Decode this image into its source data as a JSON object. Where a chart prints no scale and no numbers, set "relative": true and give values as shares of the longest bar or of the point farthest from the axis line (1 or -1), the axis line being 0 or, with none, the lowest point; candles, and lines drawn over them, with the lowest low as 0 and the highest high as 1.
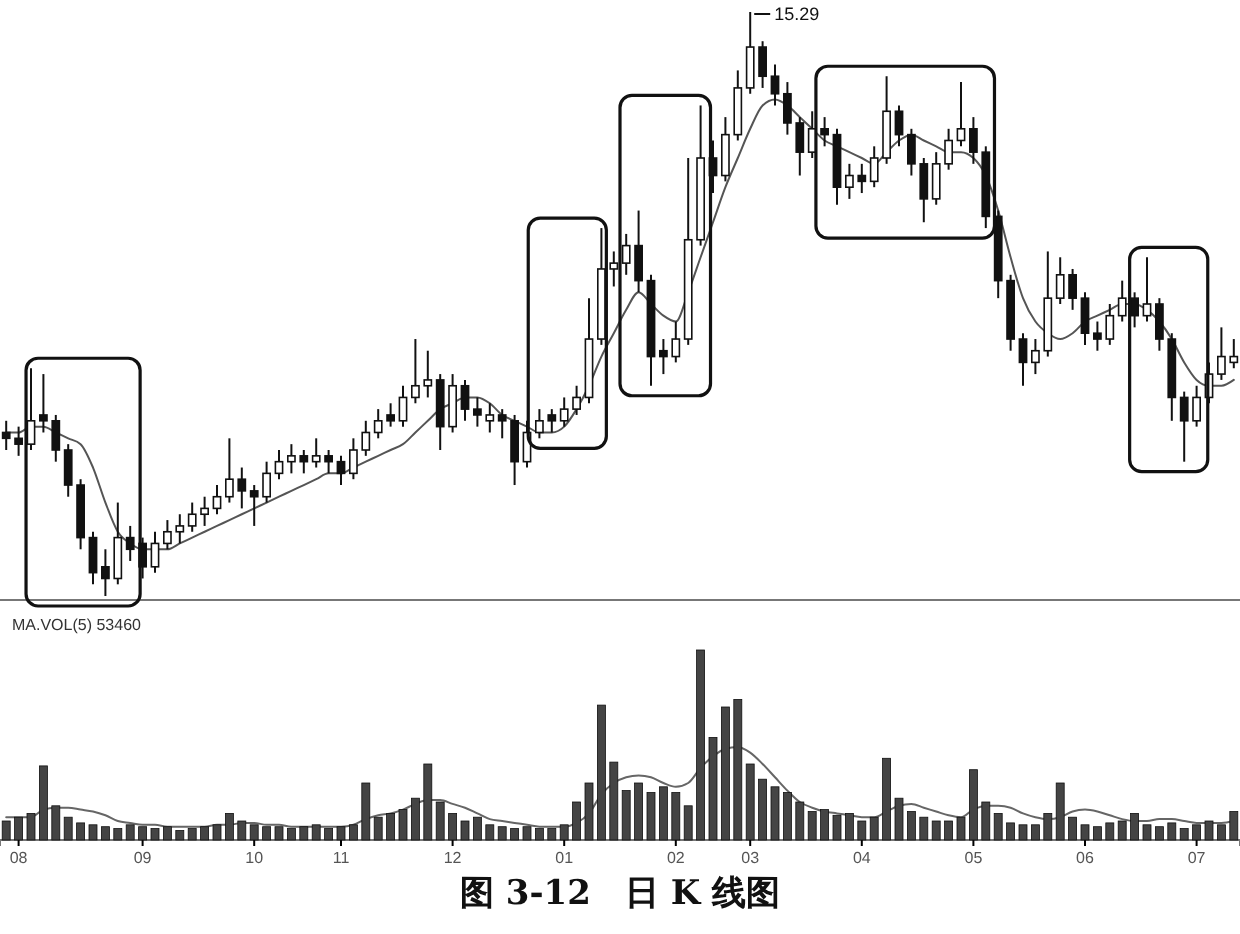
{
  "chart_data": [
    {
      "type": "candlestick",
      "relative": true,
      "tick_labels": false,
      "categories": [
        null,
        null,
        null,
        null,
        null,
        null,
        null,
        null,
        null,
        null,
        null,
        null,
        null,
        null,
        null,
        null,
        null,
        null,
        null,
        null,
        null,
        null,
        null,
        null,
        null,
        null,
        null,
        null,
        null,
        null,
        null,
        null,
        null,
        null,
        null,
        null,
        null,
        null,
        null,
        null,
        null,
        null,
        null,
        null,
        null,
        null,
        null,
        null,
        null,
        null,
        null,
        null,
        null,
        null,
        null,
        null,
        null,
        null,
        null,
        null,
        null,
        null,
        null,
        null,
        null,
        null,
        null,
        null,
        null,
        null,
        null,
        null,
        null,
        null,
        null,
        null,
        null,
        null,
        null,
        null,
        null,
        null,
        null,
        null,
        null,
        null,
        null,
        null,
        null,
        null,
        null,
        null,
        null,
        null,
        null,
        null,
        null,
        null,
        null,
        null
      ],
      "ohlc": [
        [
          0.28,
          0.3,
          0.25,
          0.27
        ],
        [
          0.27,
          0.29,
          0.24,
          0.26
        ],
        [
          0.26,
          0.39,
          0.25,
          0.3
        ],
        [
          0.31,
          0.38,
          0.28,
          0.3
        ],
        [
          0.3,
          0.31,
          0.23,
          0.25
        ],
        [
          0.25,
          0.26,
          0.17,
          0.19
        ],
        [
          0.19,
          0.2,
          0.08,
          0.1
        ],
        [
          0.1,
          0.11,
          0.02,
          0.04
        ],
        [
          0.05,
          0.08,
          0,
          0.03
        ],
        [
          0.03,
          0.16,
          0.02,
          0.1
        ],
        [
          0.1,
          0.12,
          0.06,
          0.08
        ],
        [
          0.09,
          0.1,
          0.03,
          0.05
        ],
        [
          0.05,
          0.11,
          0.04,
          0.09
        ],
        [
          0.09,
          0.13,
          0.08,
          0.11
        ],
        [
          0.11,
          0.14,
          0.09,
          0.12
        ],
        [
          0.12,
          0.16,
          0.11,
          0.14
        ],
        [
          0.14,
          0.17,
          0.12,
          0.15
        ],
        [
          0.15,
          0.19,
          0.14,
          0.17
        ],
        [
          0.17,
          0.27,
          0.16,
          0.2
        ],
        [
          0.2,
          0.22,
          0.15,
          0.18
        ],
        [
          0.18,
          0.19,
          0.12,
          0.17
        ],
        [
          0.17,
          0.23,
          0.16,
          0.21
        ],
        [
          0.21,
          0.25,
          0.2,
          0.23
        ],
        [
          0.23,
          0.26,
          0.21,
          0.24
        ],
        [
          0.24,
          0.25,
          0.21,
          0.23
        ],
        [
          0.23,
          0.27,
          0.22,
          0.24
        ],
        [
          0.24,
          0.25,
          0.21,
          0.23
        ],
        [
          0.23,
          0.24,
          0.19,
          0.21
        ],
        [
          0.21,
          0.27,
          0.2,
          0.25
        ],
        [
          0.25,
          0.3,
          0.24,
          0.28
        ],
        [
          0.28,
          0.32,
          0.27,
          0.3
        ],
        [
          0.31,
          0.33,
          0.29,
          0.3
        ],
        [
          0.3,
          0.36,
          0.29,
          0.34
        ],
        [
          0.34,
          0.44,
          0.33,
          0.36
        ],
        [
          0.36,
          0.42,
          0.34,
          0.37
        ],
        [
          0.37,
          0.38,
          0.25,
          0.29
        ],
        [
          0.29,
          0.38,
          0.28,
          0.36
        ],
        [
          0.36,
          0.37,
          0.3,
          0.32
        ],
        [
          0.32,
          0.34,
          0.29,
          0.31
        ],
        [
          0.3,
          0.33,
          0.28,
          0.31
        ],
        [
          0.31,
          0.32,
          0.27,
          0.3
        ],
        [
          0.3,
          0.31,
          0.19,
          0.23
        ],
        [
          0.23,
          0.3,
          0.22,
          0.28
        ],
        [
          0.28,
          0.32,
          0.27,
          0.3
        ],
        [
          0.31,
          0.32,
          0.28,
          0.3
        ],
        [
          0.3,
          0.34,
          0.29,
          0.32
        ],
        [
          0.32,
          0.36,
          0.31,
          0.34
        ],
        [
          0.34,
          0.51,
          0.33,
          0.44
        ],
        [
          0.44,
          0.63,
          0.43,
          0.56
        ],
        [
          0.56,
          0.59,
          0.53,
          0.57
        ],
        [
          0.57,
          0.62,
          0.55,
          0.6
        ],
        [
          0.6,
          0.66,
          0.52,
          0.54
        ],
        [
          0.54,
          0.55,
          0.36,
          0.41
        ],
        [
          0.42,
          0.44,
          0.38,
          0.41
        ],
        [
          0.41,
          0.47,
          0.4,
          0.44
        ],
        [
          0.44,
          0.75,
          0.43,
          0.61
        ],
        [
          0.61,
          0.84,
          0.6,
          0.75
        ],
        [
          0.75,
          0.78,
          0.69,
          0.72
        ],
        [
          0.72,
          0.82,
          0.71,
          0.79
        ],
        [
          0.79,
          0.9,
          0.78,
          0.87
        ],
        [
          0.87,
          1,
          0.86,
          0.94
        ],
        [
          0.94,
          0.95,
          0.87,
          0.89
        ],
        [
          0.89,
          0.91,
          0.84,
          0.86
        ],
        [
          0.86,
          0.88,
          0.79,
          0.81
        ],
        [
          0.81,
          0.82,
          0.72,
          0.76
        ],
        [
          0.76,
          0.83,
          0.75,
          0.8
        ],
        [
          0.8,
          0.82,
          0.77,
          0.79
        ],
        [
          0.79,
          0.8,
          0.67,
          0.7
        ],
        [
          0.7,
          0.74,
          0.68,
          0.72
        ],
        [
          0.72,
          0.74,
          0.69,
          0.71
        ],
        [
          0.71,
          0.77,
          0.7,
          0.75
        ],
        [
          0.75,
          0.89,
          0.74,
          0.83
        ],
        [
          0.83,
          0.84,
          0.77,
          0.79
        ],
        [
          0.79,
          0.8,
          0.72,
          0.74
        ],
        [
          0.74,
          0.75,
          0.64,
          0.68
        ],
        [
          0.68,
          0.76,
          0.67,
          0.74
        ],
        [
          0.74,
          0.8,
          0.73,
          0.78
        ],
        [
          0.78,
          0.88,
          0.77,
          0.8
        ],
        [
          0.8,
          0.82,
          0.74,
          0.76
        ],
        [
          0.76,
          0.77,
          0.63,
          0.65
        ],
        [
          0.65,
          0.66,
          0.51,
          0.54
        ],
        [
          0.54,
          0.55,
          0.42,
          0.44
        ],
        [
          0.44,
          0.45,
          0.36,
          0.4
        ],
        [
          0.4,
          0.44,
          0.38,
          0.42
        ],
        [
          0.42,
          0.59,
          0.41,
          0.51
        ],
        [
          0.51,
          0.58,
          0.5,
          0.55
        ],
        [
          0.55,
          0.56,
          0.49,
          0.51
        ],
        [
          0.51,
          0.52,
          0.43,
          0.45
        ],
        [
          0.45,
          0.47,
          0.42,
          0.44
        ],
        [
          0.44,
          0.5,
          0.43,
          0.48
        ],
        [
          0.48,
          0.54,
          0.47,
          0.51
        ],
        [
          0.51,
          0.52,
          0.46,
          0.48
        ],
        [
          0.48,
          0.58,
          0.47,
          0.5
        ],
        [
          0.5,
          0.51,
          0.42,
          0.44
        ],
        [
          0.44,
          0.45,
          0.3,
          0.34
        ],
        [
          0.34,
          0.35,
          0.23,
          0.3
        ],
        [
          0.3,
          0.36,
          0.29,
          0.34
        ],
        [
          0.34,
          0.4,
          0.33,
          0.38
        ],
        [
          0.38,
          0.46,
          0.37,
          0.41
        ],
        [
          0.4,
          0.44,
          0.39,
          0.41
        ]
      ],
      "series": [
        {
          "type": "line",
          "color": "#555555",
          "values": [
            0.28,
            0.28,
            0.29,
            0.29,
            0.28,
            0.27,
            0.26,
            0.22,
            0.16,
            0.11,
            0.09,
            0.08,
            0.08,
            0.08,
            0.09,
            0.1,
            0.11,
            0.12,
            0.13,
            0.14,
            0.15,
            0.16,
            0.17,
            0.18,
            0.19,
            0.2,
            0.21,
            0.21,
            0.22,
            0.23,
            0.24,
            0.25,
            0.26,
            0.28,
            0.3,
            0.32,
            0.33,
            0.34,
            0.34,
            0.33,
            0.31,
            0.3,
            0.29,
            0.28,
            0.28,
            0.29,
            0.32,
            0.36,
            0.41,
            0.45,
            0.49,
            0.52,
            0.5,
            0.48,
            0.47,
            0.52,
            0.58,
            0.64,
            0.7,
            0.75,
            0.8,
            0.84,
            0.85,
            0.84,
            0.82,
            0.8,
            0.78,
            0.77,
            0.76,
            0.75,
            0.74,
            0.76,
            0.78,
            0.79,
            0.78,
            0.77,
            0.76,
            0.76,
            0.75,
            0.72,
            0.66,
            0.58,
            0.51,
            0.47,
            0.45,
            0.44,
            0.45,
            0.47,
            0.48,
            0.49,
            0.5,
            0.5,
            0.49,
            0.47,
            0.44,
            0.4,
            0.37,
            0.36,
            0.36,
            0.37
          ]
        }
      ],
      "annotations": [
        "15.29"
      ]
    },
    {
      "type": "bar",
      "relative": true,
      "tick_labels": "x",
      "categories": [
        null,
        "08",
        null,
        null,
        null,
        null,
        null,
        null,
        null,
        null,
        null,
        "09",
        null,
        null,
        null,
        null,
        null,
        null,
        null,
        null,
        "10",
        null,
        null,
        null,
        null,
        null,
        null,
        "11",
        null,
        null,
        null,
        null,
        null,
        null,
        null,
        null,
        "12",
        null,
        null,
        null,
        null,
        null,
        null,
        null,
        null,
        "01",
        null,
        null,
        null,
        null,
        null,
        null,
        null,
        null,
        "02",
        null,
        null,
        null,
        null,
        null,
        "03",
        null,
        null,
        null,
        null,
        null,
        null,
        null,
        null,
        "04",
        null,
        null,
        null,
        null,
        null,
        null,
        null,
        null,
        "05",
        null,
        null,
        null,
        null,
        null,
        null,
        null,
        null,
        "06",
        null,
        null,
        null,
        null,
        null,
        null,
        null,
        null,
        "07",
        null,
        null,
        null
      ],
      "series": [
        {
          "color": "#444444",
          "values": [
            0.1,
            0.12,
            0.14,
            0.39,
            0.18,
            0.12,
            0.09,
            0.08,
            0.07,
            0.06,
            0.08,
            0.07,
            0.06,
            0.07,
            0.05,
            0.06,
            0.07,
            0.08,
            0.14,
            0.1,
            0.08,
            0.07,
            0.07,
            0.06,
            0.07,
            0.08,
            0.06,
            0.07,
            0.08,
            0.3,
            0.12,
            0.14,
            0.16,
            0.22,
            0.4,
            0.2,
            0.14,
            0.1,
            0.12,
            0.08,
            0.07,
            0.06,
            0.07,
            0.06,
            0.06,
            0.08,
            0.2,
            0.3,
            0.71,
            0.41,
            0.26,
            0.3,
            0.25,
            0.28,
            0.25,
            0.18,
            1.0,
            0.54,
            0.7,
            0.74,
            0.4,
            0.32,
            0.28,
            0.25,
            0.2,
            0.15,
            0.16,
            0.13,
            0.14,
            0.1,
            0.12,
            0.43,
            0.22,
            0.15,
            0.12,
            0.1,
            0.1,
            0.12,
            0.37,
            0.2,
            0.14,
            0.09,
            0.08,
            0.08,
            0.14,
            0.3,
            0.12,
            0.08,
            0.07,
            0.09,
            0.1,
            0.14,
            0.08,
            0.07,
            0.09,
            0.06,
            0.08,
            0.1,
            0.08,
            0.15
          ]
        },
        {
          "type": "line",
          "color": "#666666",
          "values": [
            0.12,
            0.12,
            0.12,
            0.16,
            0.17,
            0.17,
            0.16,
            0.15,
            0.13,
            0.1,
            0.09,
            0.08,
            0.08,
            0.07,
            0.07,
            0.07,
            0.07,
            0.08,
            0.08,
            0.09,
            0.09,
            0.08,
            0.08,
            0.07,
            0.07,
            0.07,
            0.07,
            0.07,
            0.08,
            0.11,
            0.13,
            0.14,
            0.16,
            0.19,
            0.21,
            0.21,
            0.19,
            0.17,
            0.14,
            0.11,
            0.1,
            0.09,
            0.08,
            0.07,
            0.07,
            0.07,
            0.09,
            0.14,
            0.24,
            0.3,
            0.33,
            0.34,
            0.33,
            0.3,
            0.28,
            0.3,
            0.38,
            0.44,
            0.48,
            0.49,
            0.46,
            0.4,
            0.33,
            0.26,
            0.2,
            0.17,
            0.15,
            0.14,
            0.13,
            0.12,
            0.12,
            0.15,
            0.18,
            0.19,
            0.17,
            0.15,
            0.13,
            0.12,
            0.16,
            0.18,
            0.18,
            0.17,
            0.14,
            0.12,
            0.11,
            0.12,
            0.15,
            0.16,
            0.15,
            0.13,
            0.11,
            0.1,
            0.1,
            0.11,
            0.11,
            0.1,
            0.09,
            0.09,
            0.09,
            0.1
          ]
        }
      ],
      "annotations": [
        "MA.VOL(5) 53460"
      ],
      "title": "图 3-12　日 K 线图"
    }
  ]
}
